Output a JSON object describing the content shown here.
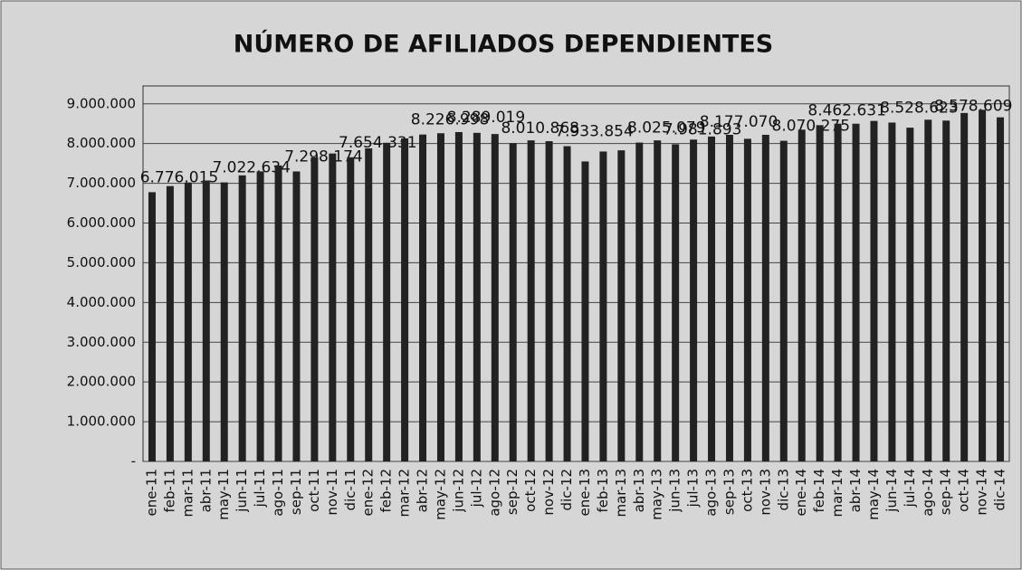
{
  "chart_data": {
    "type": "bar",
    "title": "NÚMERO DE AFILIADOS DEPENDIENTES",
    "categories": [
      "ene-11",
      "feb-11",
      "mar-11",
      "abr-11",
      "may-11",
      "jun-11",
      "jul-11",
      "ago-11",
      "sep-11",
      "oct-11",
      "nov-11",
      "dic-11",
      "ene-12",
      "feb-12",
      "mar-12",
      "abr-12",
      "may-12",
      "jun-12",
      "jul-12",
      "ago-12",
      "sep-12",
      "oct-12",
      "nov-12",
      "dic-12",
      "ene-13",
      "feb-13",
      "mar-13",
      "abr-13",
      "may-13",
      "jun-13",
      "jul-13",
      "ago-13",
      "sep-13",
      "oct-13",
      "nov-13",
      "dic-13",
      "ene-14",
      "feb-14",
      "mar-14",
      "abr-14",
      "may-14",
      "jun-14",
      "jul-14",
      "ago-14",
      "sep-14",
      "oct-14",
      "nov-14",
      "dic-14"
    ],
    "values": [
      6776015,
      6930000,
      7020000,
      7070000,
      7022634,
      7200000,
      7300000,
      7450000,
      7298174,
      7650000,
      7750000,
      7654331,
      7880000,
      8020000,
      8130000,
      8226998,
      8260000,
      8289019,
      8270000,
      8240000,
      8010868,
      8080000,
      8060000,
      7933854,
      7550000,
      7800000,
      7830000,
      8025079,
      8080000,
      7981893,
      8100000,
      8177070,
      8220000,
      8120000,
      8220000,
      8070275,
      8350000,
      8462631,
      8500000,
      8500000,
      8570000,
      8528623,
      8400000,
      8600000,
      8578609,
      8770000,
      8850000,
      8660000
    ],
    "value_labels": [
      "6.776.015",
      null,
      null,
      null,
      "7.022.634",
      null,
      null,
      null,
      "7.298.174",
      null,
      null,
      "7.654.331",
      null,
      null,
      null,
      "8.226.998",
      null,
      "8.289.019",
      null,
      null,
      "8.010.868",
      null,
      null,
      "7.933.854",
      null,
      null,
      null,
      "8.025.079",
      null,
      "7.981.893",
      null,
      "8.177.070",
      null,
      null,
      null,
      "8.070.275",
      null,
      "8.462.631",
      null,
      null,
      null,
      "8.528.623",
      null,
      null,
      "8.578.609",
      null,
      null,
      null
    ],
    "color": "#222222",
    "ylim": [
      0,
      9450000
    ],
    "yticks": [
      {
        "value": 0,
        "label": "-"
      },
      {
        "value": 1000000,
        "label": "1.000.000"
      },
      {
        "value": 2000000,
        "label": "2.000.000"
      },
      {
        "value": 3000000,
        "label": "3.000.000"
      },
      {
        "value": 4000000,
        "label": "4.000.000"
      },
      {
        "value": 5000000,
        "label": "5.000.000"
      },
      {
        "value": 6000000,
        "label": "6.000.000"
      },
      {
        "value": 7000000,
        "label": "7.000.000"
      },
      {
        "value": 8000000,
        "label": "8.000.000"
      },
      {
        "value": 9000000,
        "label": "9.000.000"
      }
    ],
    "grid": true
  }
}
